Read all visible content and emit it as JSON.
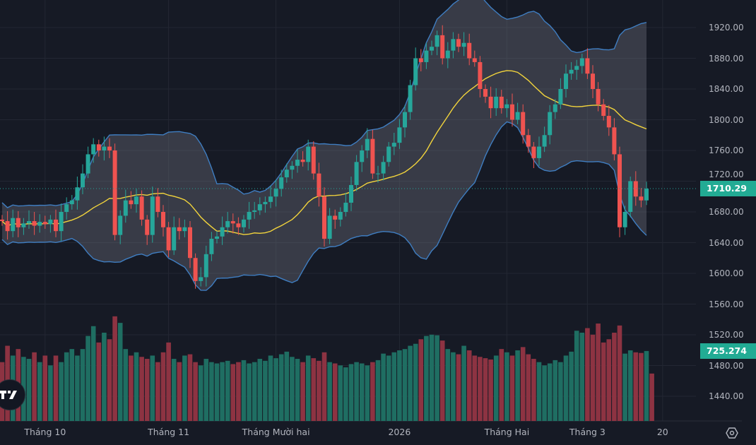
{
  "chart_data": {
    "type": "candlestick",
    "title": "",
    "ylim": [
      1420,
      1940
    ],
    "y_ticks": [
      "1920.00",
      "1880.00",
      "1840.00",
      "1800.00",
      "1760.00",
      "1720.00",
      "1680.00",
      "1640.00",
      "1600.00",
      "1560.00",
      "1520.00",
      "1480.00",
      "1440.00"
    ],
    "y_tick_values": [
      1920,
      1880,
      1840,
      1800,
      1760,
      1720,
      1680,
      1640,
      1600,
      1560,
      1520,
      1480,
      1440
    ],
    "x_ticks": [
      {
        "label": "Tháng 10",
        "index": 8
      },
      {
        "label": "Tháng 11",
        "index": 31
      },
      {
        "label": "Tháng Mười hai",
        "index": 51
      },
      {
        "label": "2026",
        "index": 74
      },
      {
        "label": "Tháng Hai",
        "index": 94
      },
      {
        "label": "Tháng 3",
        "index": 109
      },
      {
        "label": "20",
        "index": 123
      }
    ],
    "first_open": 1670,
    "close": [
      1668,
      1655,
      1672,
      1660,
      1665,
      1668,
      1662,
      1667,
      1664,
      1670,
      1655,
      1680,
      1690,
      1695,
      1712,
      1730,
      1755,
      1768,
      1760,
      1765,
      1760,
      1650,
      1675,
      1695,
      1690,
      1700,
      1670,
      1650,
      1700,
      1680,
      1660,
      1630,
      1660,
      1655,
      1660,
      1620,
      1590,
      1595,
      1625,
      1645,
      1648,
      1660,
      1668,
      1665,
      1660,
      1670,
      1680,
      1682,
      1690,
      1693,
      1700,
      1710,
      1725,
      1735,
      1740,
      1748,
      1745,
      1765,
      1730,
      1700,
      1645,
      1675,
      1670,
      1680,
      1692,
      1715,
      1745,
      1760,
      1775,
      1730,
      1730,
      1745,
      1765,
      1770,
      1790,
      1810,
      1845,
      1880,
      1875,
      1890,
      1895,
      1910,
      1880,
      1890,
      1905,
      1895,
      1900,
      1880,
      1875,
      1840,
      1830,
      1815,
      1830,
      1815,
      1820,
      1800,
      1810,
      1780,
      1765,
      1750,
      1765,
      1780,
      1810,
      1820,
      1840,
      1860,
      1865,
      1870,
      1880,
      1860,
      1840,
      1820,
      1805,
      1790,
      1755,
      1660,
      1680,
      1720,
      1700,
      1695,
      1710.29
    ],
    "volume_k": [
      900,
      1150,
      1000,
      1100,
      980,
      950,
      1050,
      900,
      1000,
      850,
      1000,
      900,
      1050,
      1100,
      1000,
      1100,
      1300,
      1450,
      1200,
      1350,
      1250,
      1600,
      1500,
      1100,
      1000,
      1050,
      980,
      950,
      1000,
      900,
      1050,
      1200,
      950,
      900,
      1000,
      1020,
      900,
      850,
      950,
      900,
      880,
      900,
      920,
      870,
      900,
      930,
      880,
      900,
      950,
      920,
      1000,
      960,
      1020,
      1060,
      980,
      950,
      900,
      1000,
      960,
      920,
      1050,
      900,
      880,
      850,
      820,
      870,
      900,
      880,
      850,
      900,
      930,
      1030,
      1000,
      1050,
      1080,
      1100,
      1150,
      1180,
      1250,
      1300,
      1320,
      1310,
      1230,
      1100,
      1050,
      1020,
      1150,
      1080,
      1000,
      980,
      960,
      940,
      1000,
      1100,
      1050,
      1000,
      1080,
      1130,
      1020,
      950,
      900,
      850,
      880,
      930,
      900,
      1000,
      1060,
      1380,
      1350,
      1420,
      1320,
      1490,
      1200,
      1250,
      1350,
      1460,
      1030,
      1080,
      1050,
      1040,
      1070,
      725.274
    ],
    "indicators": {
      "bollinger": {
        "period": 20,
        "stddev": 2
      }
    },
    "last_price_label": "1710.29",
    "last_volume_label": "725.274"
  },
  "colors": {
    "bg": "#161a25",
    "up": "#26a69a",
    "down": "#ef5350",
    "vol_up": "#1f6e62",
    "vol_down": "#8d3342",
    "band_line": "#3f7ec2",
    "basis": "#f2d43c",
    "band_fill": "rgba(120,123,134,0.35)",
    "grid": "#232733"
  },
  "logo": "TV",
  "icons": {
    "settings": "settings-icon"
  }
}
